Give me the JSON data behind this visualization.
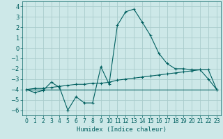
{
  "title": "",
  "xlabel": "Humidex (Indice chaleur)",
  "background_color": "#cde8e8",
  "grid_color": "#aacccc",
  "line_color": "#005f5f",
  "xlim": [
    -0.5,
    23.5
  ],
  "ylim": [
    -6.5,
    4.5
  ],
  "yticks": [
    -6,
    -5,
    -4,
    -3,
    -2,
    -1,
    0,
    1,
    2,
    3,
    4
  ],
  "xticks": [
    0,
    1,
    2,
    3,
    4,
    5,
    6,
    7,
    8,
    9,
    10,
    11,
    12,
    13,
    14,
    15,
    16,
    17,
    18,
    19,
    20,
    21,
    22,
    23
  ],
  "series1_x": [
    0,
    1,
    2,
    3,
    4,
    5,
    6,
    7,
    8,
    9,
    10,
    11,
    12,
    13,
    14,
    15,
    16,
    17,
    18,
    19,
    20,
    21,
    22,
    23
  ],
  "series1_y": [
    -4.0,
    -4.3,
    -4.1,
    -3.3,
    -3.8,
    -6.0,
    -4.7,
    -5.3,
    -5.3,
    -1.8,
    -3.5,
    2.2,
    3.5,
    3.75,
    2.5,
    1.2,
    -0.5,
    -1.5,
    -2.0,
    -2.0,
    -2.1,
    -2.1,
    -3.0,
    -4.0
  ],
  "series2_x": [
    0,
    1,
    2,
    3,
    4,
    5,
    6,
    7,
    8,
    9,
    10,
    11,
    12,
    13,
    14,
    15,
    16,
    17,
    18,
    19,
    20,
    21,
    22,
    23
  ],
  "series2_y": [
    -4.0,
    -3.9,
    -3.9,
    -3.8,
    -3.7,
    -3.6,
    -3.5,
    -3.5,
    -3.4,
    -3.4,
    -3.3,
    -3.1,
    -3.0,
    -2.9,
    -2.8,
    -2.7,
    -2.6,
    -2.5,
    -2.4,
    -2.3,
    -2.2,
    -2.1,
    -2.1,
    -4.0
  ],
  "series3_x": [
    0,
    23
  ],
  "series3_y": [
    -4.0,
    -4.0
  ]
}
